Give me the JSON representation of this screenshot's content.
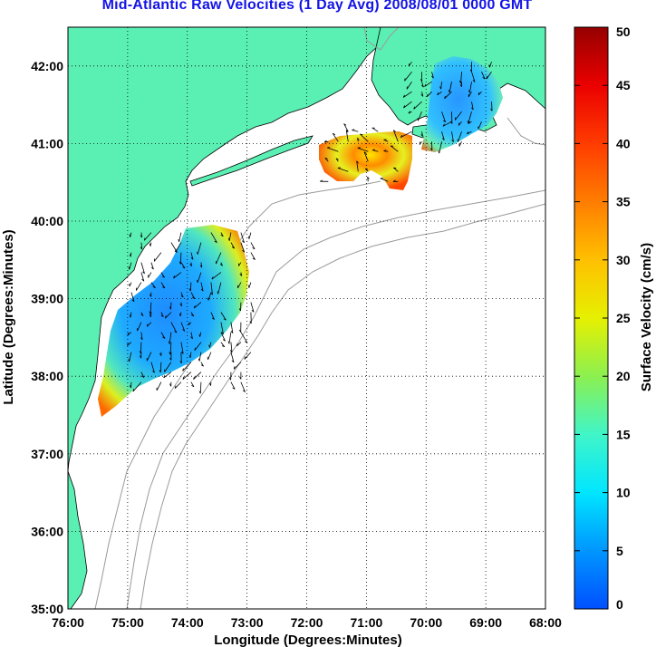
{
  "title": "Mid-Atlantic Raw Velocities (1 Day Avg) 2008/08/01 0000 GMT",
  "x_axis": {
    "label": "Longitude (Degrees:Minutes)",
    "ticks": [
      "76:00",
      "75:00",
      "74:00",
      "73:00",
      "72:00",
      "71:00",
      "70:00",
      "69:00",
      "68:00"
    ],
    "range": [
      -76,
      -68
    ]
  },
  "y_axis": {
    "label": "Latitude (Degrees:Minutes)",
    "ticks": [
      "35:00",
      "36:00",
      "37:00",
      "38:00",
      "39:00",
      "40:00",
      "41:00",
      "42:00"
    ],
    "range": [
      35,
      42.5
    ]
  },
  "colorbar": {
    "label": "Surface Velocity (cm/s)",
    "ticks": [
      "0",
      "5",
      "10",
      "15",
      "20",
      "25",
      "30",
      "35",
      "40",
      "45",
      "50"
    ],
    "range": [
      0,
      50
    ]
  },
  "colors": {
    "land": "#5af0b4",
    "bathymetry": "#9a9a9a",
    "title": "#1414e6",
    "grid": "#000000"
  },
  "chart_data": {
    "type": "heatmap",
    "title": "Mid-Atlantic Raw Velocities (1 Day Avg) 2008/08/01 0000 GMT",
    "xlabel": "Longitude (Degrees:Minutes)",
    "ylabel": "Latitude (Degrees:Minutes)",
    "xlim": [
      -76,
      -68
    ],
    "ylim": [
      35,
      42.5
    ],
    "grid": true,
    "colorbar_label": "Surface Velocity (cm/s)",
    "colorbar_range": [
      0,
      50
    ],
    "regions": [
      {
        "lon": [
          -75.0,
          -72.9
        ],
        "lat": [
          37.9,
          39.9
        ],
        "mean_speed_cm_s": 8
      },
      {
        "lon": [
          -71.7,
          -70.4
        ],
        "lat": [
          40.4,
          41.2
        ],
        "mean_speed_cm_s": 22
      },
      {
        "lon": [
          -70.3,
          -68.8
        ],
        "lat": [
          40.9,
          42.1
        ],
        "mean_speed_cm_s": 9
      }
    ]
  }
}
